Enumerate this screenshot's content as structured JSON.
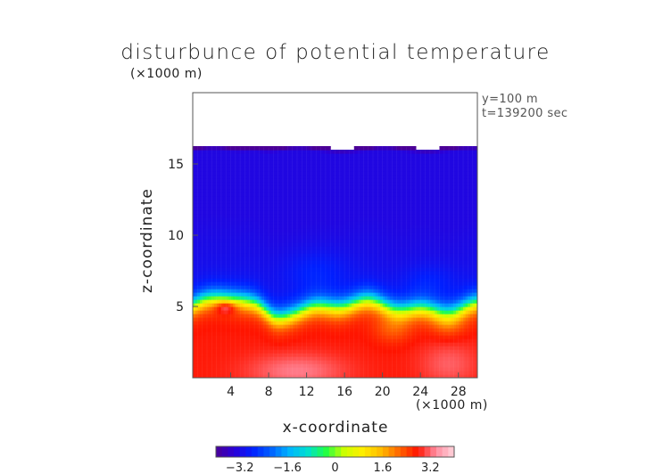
{
  "chart_data": {
    "type": "heatmap",
    "title": "disturbunce of potential temperature",
    "xlabel": "x-coordinate",
    "ylabel": "z-coordinate",
    "x_unit": "(×1000 m)",
    "y_unit": "(×1000 m)",
    "annotations": [
      "y=100 m",
      "t=139200 sec"
    ],
    "xlim": [
      0,
      30
    ],
    "ylim": [
      0,
      20
    ],
    "x_ticks": [
      4,
      8,
      12,
      16,
      20,
      24,
      28
    ],
    "y_ticks": [
      5,
      10,
      15
    ],
    "colorbar": {
      "range": [
        -4,
        4
      ],
      "ticks": [
        -3.2,
        -1.6,
        0,
        1.6,
        3.2
      ],
      "tick_labels": [
        "−3.2",
        "−1.6",
        "0",
        "1.6",
        "3.2"
      ],
      "colormap": "rainbow"
    },
    "field_description": {
      "domain_top_km": 16.2,
      "upper_layer_value": -3.0,
      "transition_height_km": 5.0,
      "lower_layer_value": 2.8
    }
  },
  "colors": {
    "colormap_stops": [
      "#4a0096",
      "#2a00d8",
      "#0020ff",
      "#0060ff",
      "#00b4ff",
      "#00e0d0",
      "#22ff44",
      "#ccff00",
      "#ffee00",
      "#ffbb00",
      "#ff6600",
      "#ff1400",
      "#ff8ca0",
      "#ffd4dc"
    ]
  }
}
